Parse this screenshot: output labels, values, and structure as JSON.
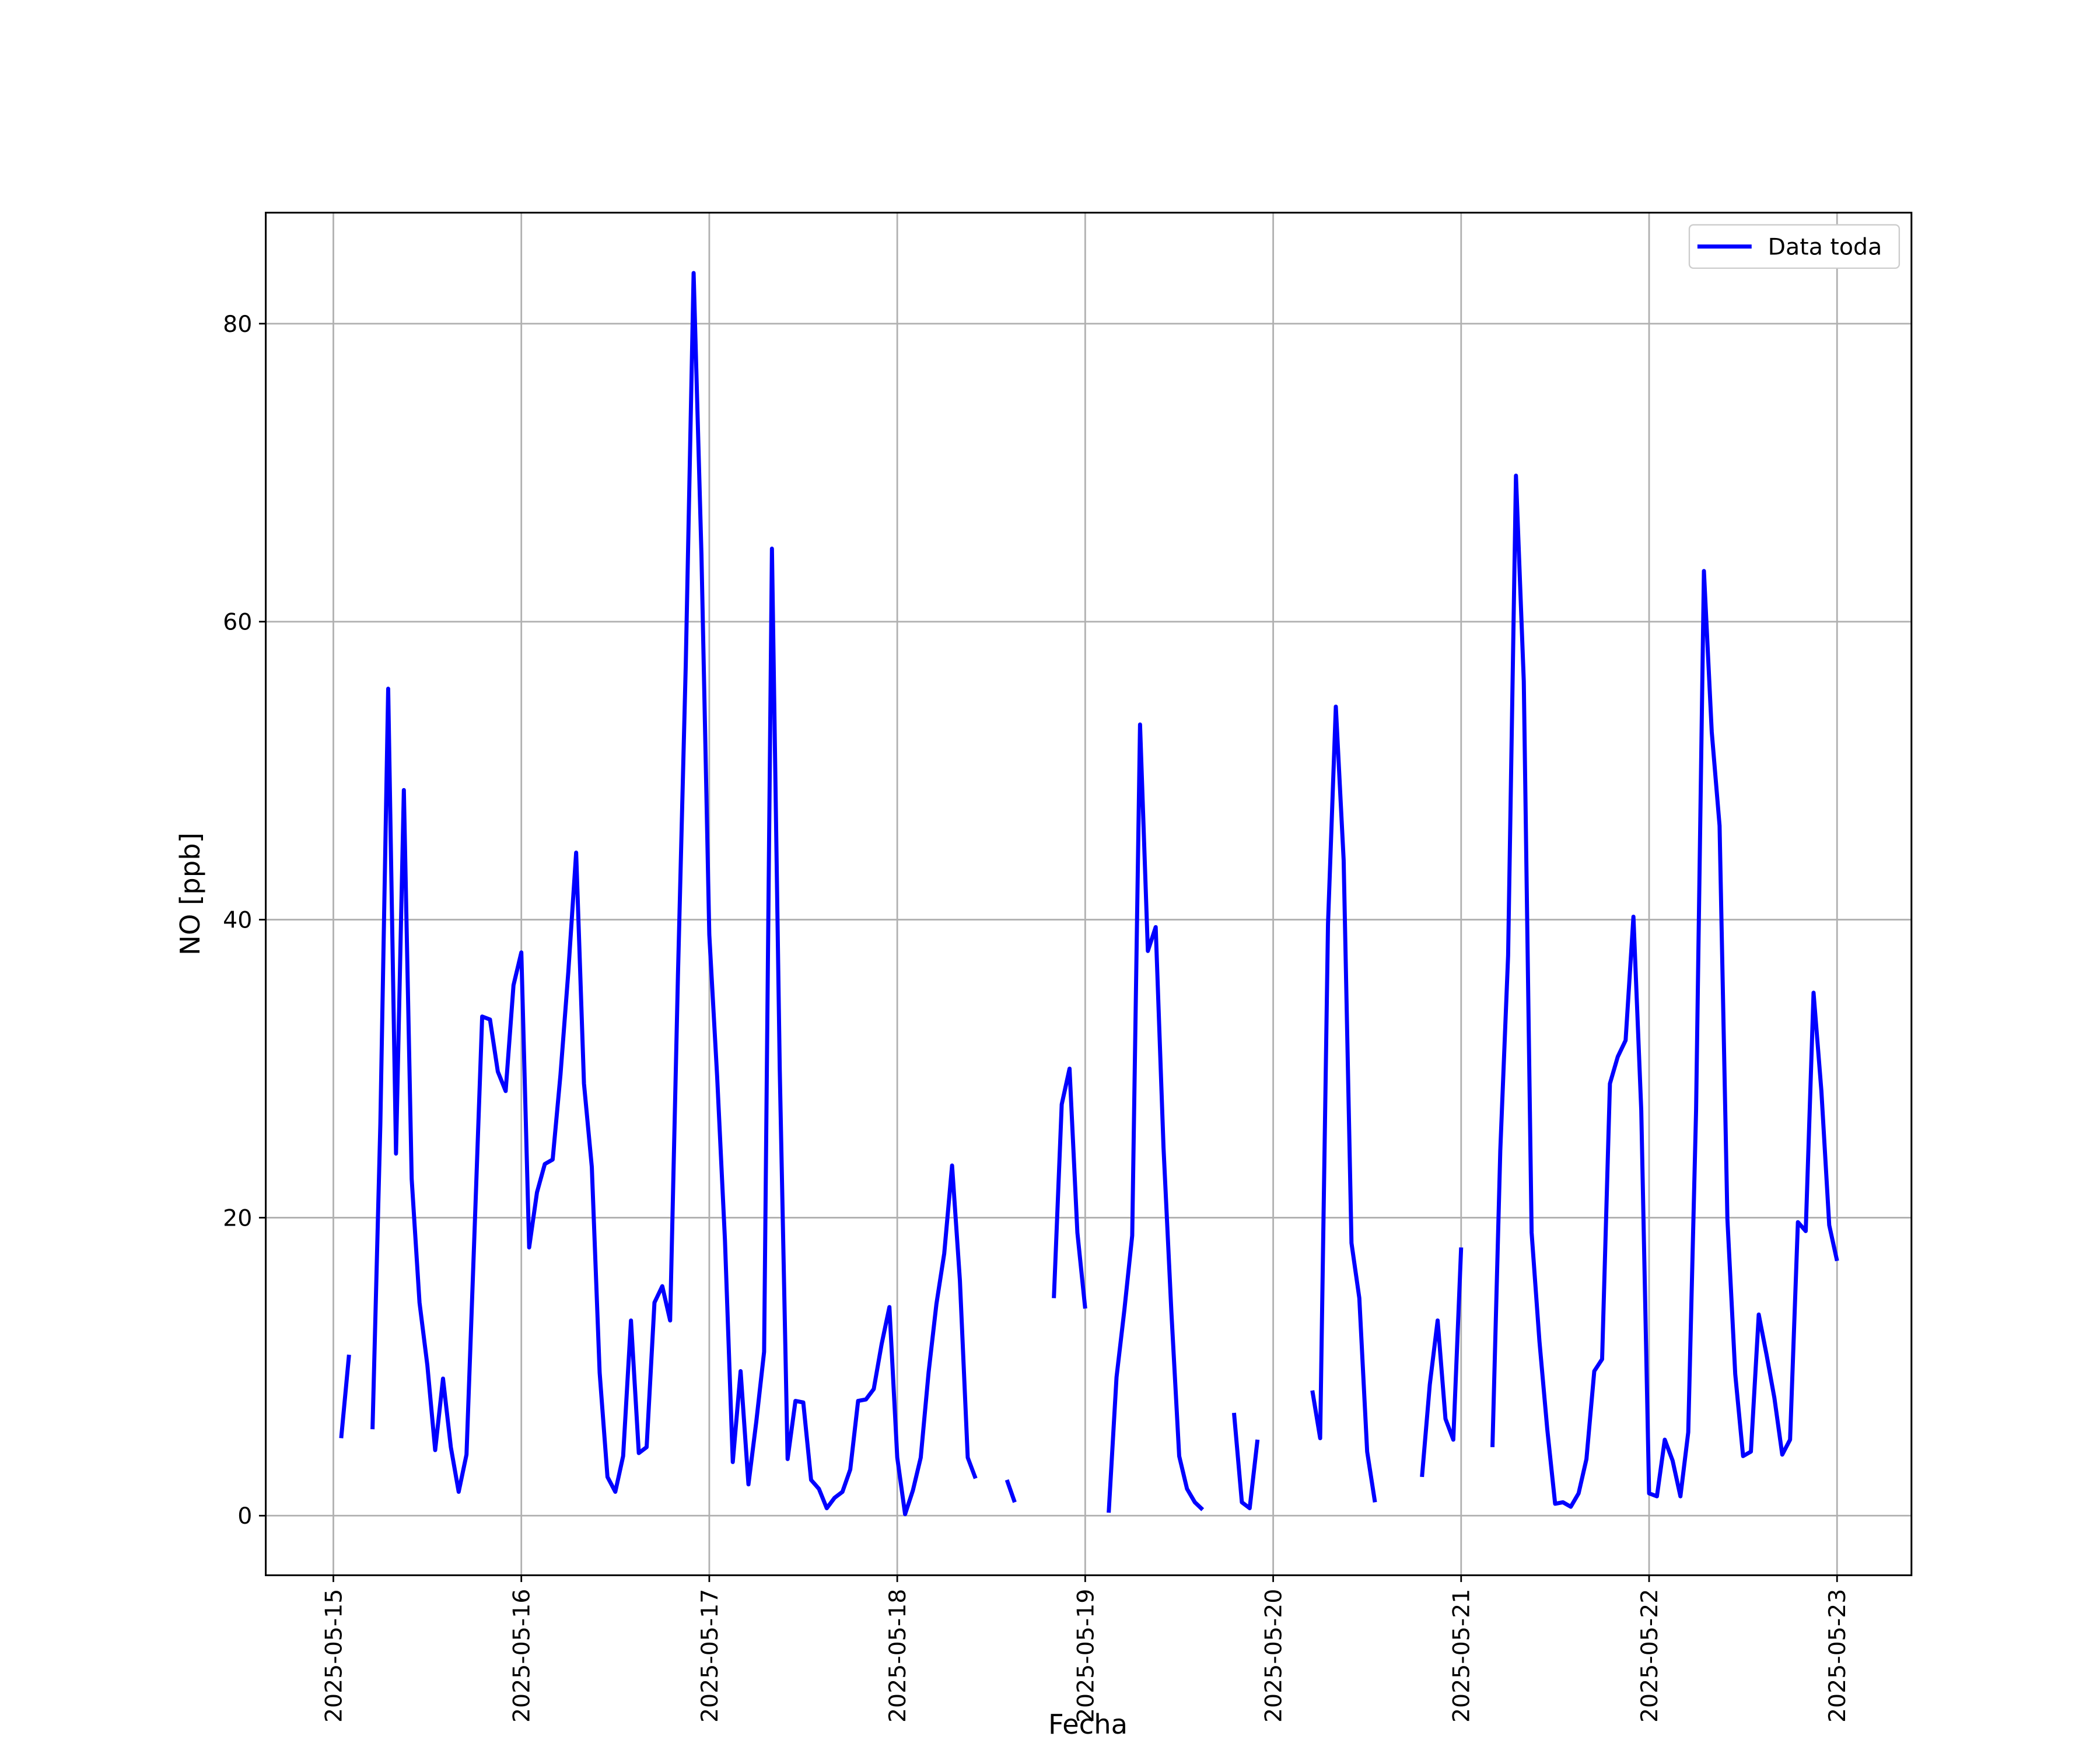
{
  "chart_data": {
    "type": "line",
    "xlabel": "Fecha",
    "ylabel": "NO [ppb]",
    "grid": true,
    "legend": "upper right",
    "xlim": [
      "2025-05-14 15:22",
      "2025-05-23 09:30"
    ],
    "xticks": [
      "2025-05-15",
      "2025-05-16",
      "2025-05-17",
      "2025-05-18",
      "2025-05-19",
      "2025-05-20",
      "2025-05-21",
      "2025-05-22",
      "2025-05-23"
    ],
    "ylim": [
      -4,
      87.45
    ],
    "yticks": [
      0,
      20,
      40,
      60,
      80
    ],
    "x": [
      "2025-05-15 01:00",
      "2025-05-15 02:00",
      "2025-05-15 03:00",
      "2025-05-15 04:00",
      "2025-05-15 05:00",
      "2025-05-15 06:00",
      "2025-05-15 07:00",
      "2025-05-15 08:00",
      "2025-05-15 09:00",
      "2025-05-15 10:00",
      "2025-05-15 11:00",
      "2025-05-15 12:00",
      "2025-05-15 13:00",
      "2025-05-15 14:00",
      "2025-05-15 15:00",
      "2025-05-15 16:00",
      "2025-05-15 17:00",
      "2025-05-15 18:00",
      "2025-05-15 19:00",
      "2025-05-15 20:00",
      "2025-05-15 21:00",
      "2025-05-15 22:00",
      "2025-05-15 23:00",
      "2025-05-16 00:00",
      "2025-05-16 01:00",
      "2025-05-16 02:00",
      "2025-05-16 03:00",
      "2025-05-16 04:00",
      "2025-05-16 05:00",
      "2025-05-16 06:00",
      "2025-05-16 07:00",
      "2025-05-16 08:00",
      "2025-05-16 09:00",
      "2025-05-16 10:00",
      "2025-05-16 11:00",
      "2025-05-16 12:00",
      "2025-05-16 13:00",
      "2025-05-16 14:00",
      "2025-05-16 15:00",
      "2025-05-16 16:00",
      "2025-05-16 17:00",
      "2025-05-16 18:00",
      "2025-05-16 19:00",
      "2025-05-16 20:00",
      "2025-05-16 21:00",
      "2025-05-16 22:00",
      "2025-05-16 23:00",
      "2025-05-17 00:00",
      "2025-05-17 01:00",
      "2025-05-17 02:00",
      "2025-05-17 03:00",
      "2025-05-17 04:00",
      "2025-05-17 05:00",
      "2025-05-17 06:00",
      "2025-05-17 07:00",
      "2025-05-17 08:00",
      "2025-05-17 09:00",
      "2025-05-17 10:00",
      "2025-05-17 11:00",
      "2025-05-17 12:00",
      "2025-05-17 13:00",
      "2025-05-17 14:00",
      "2025-05-17 15:00",
      "2025-05-17 16:00",
      "2025-05-17 17:00",
      "2025-05-17 18:00",
      "2025-05-17 19:00",
      "2025-05-17 20:00",
      "2025-05-17 21:00",
      "2025-05-17 22:00",
      "2025-05-17 23:00",
      "2025-05-18 00:00",
      "2025-05-18 01:00",
      "2025-05-18 02:00",
      "2025-05-18 03:00",
      "2025-05-18 04:00",
      "2025-05-18 05:00",
      "2025-05-18 06:00",
      "2025-05-18 07:00",
      "2025-05-18 08:00",
      "2025-05-18 09:00",
      "2025-05-18 10:00",
      "2025-05-18 11:00",
      "2025-05-18 12:00",
      "2025-05-18 13:00",
      "2025-05-18 14:00",
      "2025-05-18 15:00",
      "2025-05-18 16:00",
      "2025-05-18 17:00",
      "2025-05-18 18:00",
      "2025-05-18 19:00",
      "2025-05-18 20:00",
      "2025-05-18 21:00",
      "2025-05-18 22:00",
      "2025-05-18 23:00",
      "2025-05-19 00:00",
      "2025-05-19 01:00",
      "2025-05-19 02:00",
      "2025-05-19 03:00",
      "2025-05-19 04:00",
      "2025-05-19 05:00",
      "2025-05-19 06:00",
      "2025-05-19 07:00",
      "2025-05-19 08:00",
      "2025-05-19 09:00",
      "2025-05-19 10:00",
      "2025-05-19 11:00",
      "2025-05-19 12:00",
      "2025-05-19 13:00",
      "2025-05-19 14:00",
      "2025-05-19 15:00",
      "2025-05-19 16:00",
      "2025-05-19 17:00",
      "2025-05-19 18:00",
      "2025-05-19 19:00",
      "2025-05-19 20:00",
      "2025-05-19 21:00",
      "2025-05-19 22:00",
      "2025-05-19 23:00",
      "2025-05-20 00:00",
      "2025-05-20 01:00",
      "2025-05-20 02:00",
      "2025-05-20 03:00",
      "2025-05-20 04:00",
      "2025-05-20 05:00",
      "2025-05-20 06:00",
      "2025-05-20 07:00",
      "2025-05-20 08:00",
      "2025-05-20 09:00",
      "2025-05-20 10:00",
      "2025-05-20 11:00",
      "2025-05-20 12:00",
      "2025-05-20 13:00",
      "2025-05-20 14:00",
      "2025-05-20 15:00",
      "2025-05-20 16:00",
      "2025-05-20 17:00",
      "2025-05-20 18:00",
      "2025-05-20 19:00",
      "2025-05-20 20:00",
      "2025-05-20 21:00",
      "2025-05-20 22:00",
      "2025-05-20 23:00",
      "2025-05-21 00:00",
      "2025-05-21 01:00",
      "2025-05-21 02:00",
      "2025-05-21 03:00",
      "2025-05-21 04:00",
      "2025-05-21 05:00",
      "2025-05-21 06:00",
      "2025-05-21 07:00",
      "2025-05-21 08:00",
      "2025-05-21 09:00",
      "2025-05-21 10:00",
      "2025-05-21 11:00",
      "2025-05-21 12:00",
      "2025-05-21 13:00",
      "2025-05-21 14:00",
      "2025-05-21 15:00",
      "2025-05-21 16:00",
      "2025-05-21 17:00",
      "2025-05-21 18:00",
      "2025-05-21 19:00",
      "2025-05-21 20:00",
      "2025-05-21 21:00",
      "2025-05-21 22:00",
      "2025-05-21 23:00",
      "2025-05-22 00:00",
      "2025-05-22 01:00",
      "2025-05-22 02:00",
      "2025-05-22 03:00",
      "2025-05-22 04:00",
      "2025-05-22 05:00",
      "2025-05-22 06:00",
      "2025-05-22 07:00",
      "2025-05-22 08:00",
      "2025-05-22 09:00",
      "2025-05-22 10:00",
      "2025-05-22 11:00",
      "2025-05-22 12:00",
      "2025-05-22 13:00",
      "2025-05-22 14:00",
      "2025-05-22 15:00",
      "2025-05-22 16:00",
      "2025-05-22 17:00",
      "2025-05-22 18:00",
      "2025-05-22 19:00",
      "2025-05-22 20:00",
      "2025-05-22 21:00",
      "2025-05-22 22:00",
      "2025-05-22 23:00",
      "2025-05-23 00:00"
    ],
    "series": [
      {
        "name": "Data toda",
        "color": "#0000ff",
        "values": [
          5.2,
          10.8,
          null,
          null,
          5.8,
          26.3,
          55.5,
          24.3,
          48.7,
          22.6,
          14.3,
          10.1,
          4.4,
          9.2,
          4.6,
          1.6,
          4.1,
          18.7,
          33.5,
          33.3,
          29.8,
          28.5,
          35.6,
          37.8,
          18,
          21.7,
          23.6,
          23.9,
          29.6,
          36.5,
          44.5,
          29,
          23.4,
          9.6,
          2.6,
          1.6,
          4,
          13.1,
          4.2,
          4.6,
          14.3,
          15.4,
          13.1,
          36.3,
          57.2,
          83.4,
          64.5,
          39,
          29.5,
          18.5,
          3.6,
          9.7,
          2.1,
          6.3,
          11,
          64.9,
          29.9,
          3.8,
          7.7,
          7.6,
          2.4,
          1.8,
          0.5,
          1.2,
          1.6,
          3.1,
          7.7,
          7.8,
          8.5,
          11.5,
          14,
          3.9,
          0.1,
          1.7,
          3.9,
          9.6,
          14.2,
          17.6,
          23.5,
          15.8,
          3.9,
          2.5,
          null,
          null,
          null,
          2.4,
          0.9,
          null,
          null,
          null,
          null,
          14.6,
          27.6,
          30,
          19,
          13.9,
          null,
          null,
          0.2,
          9.3,
          13.8,
          18.8,
          53.1,
          37.9,
          39.5,
          24.7,
          13.7,
          4,
          1.8,
          0.9,
          0.4,
          null,
          null,
          null,
          6.9,
          0.9,
          0.5,
          5.1,
          null,
          null,
          null,
          null,
          null,
          null,
          8.4,
          5.2,
          39.7,
          54.3,
          44,
          18.3,
          14.6,
          4.3,
          0.9,
          null,
          null,
          null,
          null,
          null,
          2.6,
          8.8,
          13.1,
          6.5,
          5.1,
          18,
          null,
          null,
          null,
          4.6,
          24.5,
          37.6,
          69.8,
          56,
          19,
          11.7,
          5.8,
          0.8,
          0.9,
          0.6,
          1.5,
          3.8,
          9.7,
          10.5,
          29,
          30.8,
          31.9,
          40.2,
          27.2,
          1.5,
          1.3,
          5.1,
          3.7,
          1.3,
          5.6,
          27.2,
          63.4,
          52.6,
          46.3,
          19.9,
          9.5,
          4,
          4.3,
          13.5,
          10.8,
          7.9,
          4.1,
          5.1,
          19.7,
          19.1,
          35.1,
          28.5,
          19.5,
          17.1
        ]
      }
    ]
  }
}
